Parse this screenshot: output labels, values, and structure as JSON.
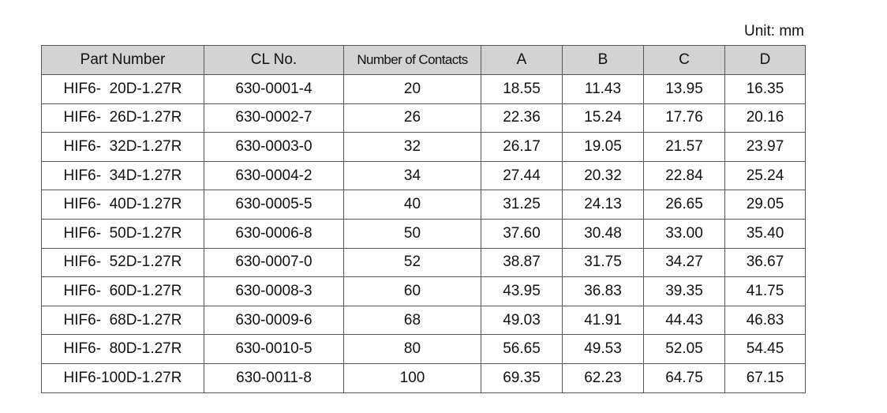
{
  "unit": "Unit: mm",
  "table": {
    "header": [
      "Part Number",
      "CL No.",
      "Number of Contacts",
      "A",
      "B",
      "C",
      "D"
    ],
    "rows": [
      [
        "HIF6-  20D-1.27R",
        "630-0001-4",
        "20",
        "18.55",
        "11.43",
        "13.95",
        "16.35"
      ],
      [
        "HIF6-  26D-1.27R",
        "630-0002-7",
        "26",
        "22.36",
        "15.24",
        "17.76",
        "20.16"
      ],
      [
        "HIF6-  32D-1.27R",
        "630-0003-0",
        "32",
        "26.17",
        "19.05",
        "21.57",
        "23.97"
      ],
      [
        "HIF6-  34D-1.27R",
        "630-0004-2",
        "34",
        "27.44",
        "20.32",
        "22.84",
        "25.24"
      ],
      [
        "HIF6-  40D-1.27R",
        "630-0005-5",
        "40",
        "31.25",
        "24.13",
        "26.65",
        "29.05"
      ],
      [
        "HIF6-  50D-1.27R",
        "630-0006-8",
        "50",
        "37.60",
        "30.48",
        "33.00",
        "35.40"
      ],
      [
        "HIF6-  52D-1.27R",
        "630-0007-0",
        "52",
        "38.87",
        "31.75",
        "34.27",
        "36.67"
      ],
      [
        "HIF6-  60D-1.27R",
        "630-0008-3",
        "60",
        "43.95",
        "36.83",
        "39.35",
        "41.75"
      ],
      [
        "HIF6-  68D-1.27R",
        "630-0009-6",
        "68",
        "49.03",
        "41.91",
        "44.43",
        "46.83"
      ],
      [
        "HIF6-  80D-1.27R",
        "630-0010-5",
        "80",
        "56.65",
        "49.53",
        "52.05",
        "54.45"
      ],
      [
        "HIF6-100D-1.27R",
        "630-0011-8",
        "100",
        "69.35",
        "62.23",
        "64.75",
        "67.15"
      ]
    ]
  }
}
